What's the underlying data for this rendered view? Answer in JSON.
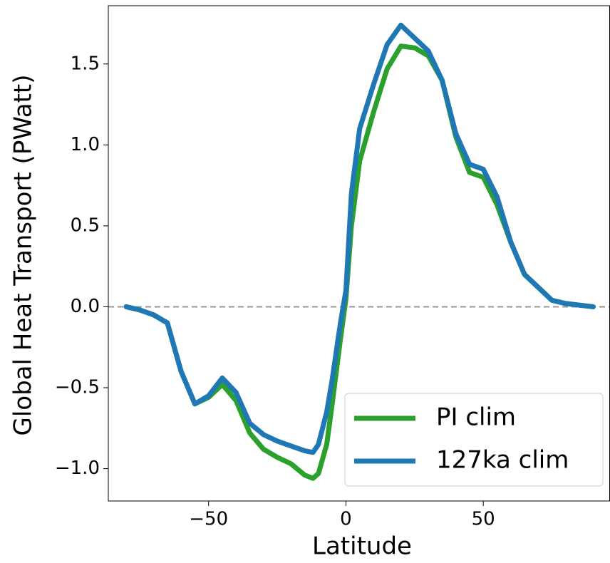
{
  "chart_data": {
    "type": "line",
    "x_label": "Latitude",
    "y_label": "Global Heat Transport (PWatt)",
    "x": [
      -80,
      -75,
      -70,
      -65,
      -60,
      -55,
      -50,
      -45,
      -40,
      -35,
      -30,
      -25,
      -20,
      -15,
      -12,
      -10,
      -7,
      -5,
      -2,
      0,
      2,
      5,
      10,
      15,
      20,
      25,
      30,
      35,
      40,
      45,
      50,
      55,
      60,
      65,
      70,
      75,
      80,
      85,
      90
    ],
    "series": [
      {
        "name": "PI clim",
        "color": "#2ca02c",
        "values": [
          0.0,
          -0.02,
          -0.05,
          -0.1,
          -0.4,
          -0.6,
          -0.56,
          -0.48,
          -0.58,
          -0.78,
          -0.88,
          -0.93,
          -0.97,
          -1.04,
          -1.06,
          -1.03,
          -0.85,
          -0.6,
          -0.2,
          0.05,
          0.5,
          0.9,
          1.2,
          1.47,
          1.61,
          1.6,
          1.55,
          1.4,
          1.05,
          0.83,
          0.8,
          0.63,
          0.4,
          0.2,
          0.12,
          0.04,
          0.02,
          0.01,
          0.0
        ]
      },
      {
        "name": "127ka clim",
        "color": "#1f77b4",
        "values": [
          0.0,
          -0.02,
          -0.05,
          -0.1,
          -0.4,
          -0.6,
          -0.55,
          -0.44,
          -0.53,
          -0.72,
          -0.79,
          -0.83,
          -0.86,
          -0.89,
          -0.9,
          -0.85,
          -0.65,
          -0.45,
          -0.1,
          0.1,
          0.7,
          1.1,
          1.37,
          1.62,
          1.74,
          1.66,
          1.58,
          1.4,
          1.07,
          0.88,
          0.85,
          0.68,
          0.4,
          0.2,
          0.12,
          0.04,
          0.02,
          0.01,
          0.0
        ]
      }
    ],
    "xlim": [
      -86.5,
      96
    ],
    "ylim": [
      -1.2,
      1.86
    ],
    "xticks": [
      {
        "value": -50,
        "label": "−50"
      },
      0,
      50
    ],
    "yticks": [
      {
        "value": -1.0,
        "label": "−1.0"
      },
      {
        "value": -0.5,
        "label": "−0.5"
      },
      {
        "value": 0.0,
        "label": "0.0"
      },
      0.5,
      {
        "value": 1.0,
        "label": "1.0"
      },
      1.5
    ],
    "hline": 0,
    "hline_color": "#999999",
    "legend": "lower right"
  }
}
